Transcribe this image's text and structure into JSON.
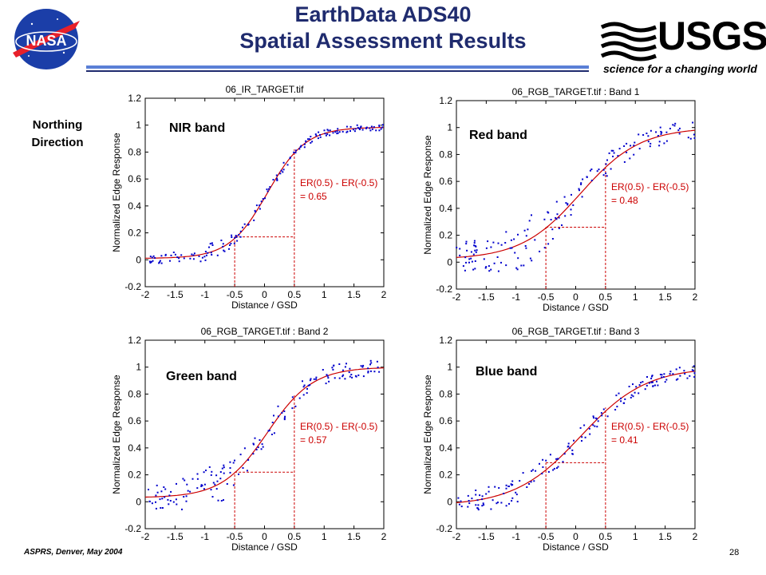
{
  "slide": {
    "title_line1": "EarthData ADS40",
    "title_line2": "Spatial Assessment Results",
    "direction_line1": "Northing",
    "direction_line2": "Direction",
    "footer_left": "ASPRS, Denver, May 2004",
    "page_number": "28"
  },
  "logos": {
    "nasa_text": "NASA",
    "usgs_text": "USGS",
    "usgs_tagline": "science for a changing world"
  },
  "colors": {
    "title": "#1f2b6e",
    "fit_curve": "#cc0000",
    "points": "#0000cc",
    "annotation": "#cc0000"
  },
  "chart_data": [
    {
      "type": "scatter",
      "title": "06_IR_TARGET.tif",
      "band_label": "NIR band",
      "xlabel": "Distance / GSD",
      "ylabel": "Normalized Edge Response",
      "xlim": [
        -2,
        2
      ],
      "ylim": [
        -0.2,
        1.2
      ],
      "xticks": [
        "-2",
        "-1.5",
        "-1",
        "-0.5",
        "0",
        "0.5",
        "1",
        "1.5",
        "2"
      ],
      "yticks": [
        "-0.2",
        "0",
        "0.2",
        "0.4",
        "0.6",
        "0.8",
        "1",
        "1.2"
      ],
      "fit": {
        "low": 0.01,
        "high": 0.985,
        "center": 0.05,
        "width": 0.32
      },
      "er_marks": {
        "x1": -0.5,
        "x2": 0.5,
        "y_low": 0.17,
        "y_high": 0.82
      },
      "annotation_line1": "ER(0.5) - ER(-0.5)",
      "annotation_line2": "= 0.65",
      "noise": 0.02,
      "seed": 11
    },
    {
      "type": "scatter",
      "title": "06_RGB_TARGET.tif : Band 1",
      "band_label": "Red band",
      "xlabel": "Distance / GSD",
      "ylabel": "Normalized Edge Response",
      "xlim": [
        -2,
        2
      ],
      "ylim": [
        -0.2,
        1.2
      ],
      "xticks": [
        "-2",
        "-1.5",
        "-1",
        "-0.5",
        "0",
        "0.5",
        "1",
        "1.5",
        "2"
      ],
      "yticks": [
        "-0.2",
        "0",
        "0.2",
        "0.4",
        "0.6",
        "0.8",
        "1",
        "1.2"
      ],
      "fit": {
        "low": 0.02,
        "high": 1.0,
        "center": 0.08,
        "width": 0.5
      },
      "er_marks": {
        "x1": -0.5,
        "x2": 0.5,
        "y_low": 0.26,
        "y_high": 0.75
      },
      "annotation_line1": "ER(0.5) - ER(-0.5)",
      "annotation_line2": "= 0.48",
      "noise": 0.06,
      "seed": 23
    },
    {
      "type": "scatter",
      "title": "06_RGB_TARGET.tif : Band 2",
      "band_label": "Green band",
      "xlabel": "Distance / GSD",
      "ylabel": "Normalized Edge Response",
      "xlim": [
        -2,
        2
      ],
      "ylim": [
        -0.2,
        1.2
      ],
      "xticks": [
        "-2",
        "-1.5",
        "-1",
        "-0.5",
        "0",
        "0.5",
        "1",
        "1.5",
        "2"
      ],
      "yticks": [
        "-0.2",
        "0",
        "0.2",
        "0.4",
        "0.6",
        "0.8",
        "1",
        "1.2"
      ],
      "fit": {
        "low": 0.03,
        "high": 1.0,
        "center": 0.05,
        "width": 0.38
      },
      "er_marks": {
        "x1": -0.5,
        "x2": 0.5,
        "y_low": 0.22,
        "y_high": 0.79
      },
      "annotation_line1": "ER(0.5) - ER(-0.5)",
      "annotation_line2": "= 0.57",
      "noise": 0.05,
      "seed": 37
    },
    {
      "type": "scatter",
      "title": "06_RGB_TARGET.tif : Band 3",
      "band_label": "Blue band",
      "xlabel": "Distance / GSD",
      "ylabel": "Normalized Edge Response",
      "xlim": [
        -2,
        2
      ],
      "ylim": [
        -0.2,
        1.2
      ],
      "xticks": [
        "-2",
        "-1.5",
        "-1",
        "-0.5",
        "0",
        "0.5",
        "1",
        "1.5",
        "2"
      ],
      "yticks": [
        "-0.2",
        "0",
        "0.2",
        "0.4",
        "0.6",
        "0.8",
        "1",
        "1.2"
      ],
      "fit": {
        "low": -0.03,
        "high": 1.0,
        "center": 0.08,
        "width": 0.55
      },
      "er_marks": {
        "x1": -0.5,
        "x2": 0.5,
        "y_low": 0.29,
        "y_high": 0.7
      },
      "annotation_line1": "ER(0.5) - ER(-0.5)",
      "annotation_line2": "= 0.41",
      "noise": 0.04,
      "seed": 53
    }
  ]
}
